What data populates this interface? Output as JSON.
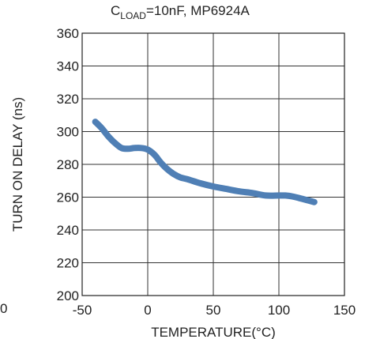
{
  "chart_data": {
    "type": "line",
    "title_parts": {
      "prefix": "C",
      "subscript": "LOAD",
      "suffix": "=10nF, MP6924A"
    },
    "xlabel": "TEMPERATURE(°C)",
    "ylabel": "TURN ON DELAY (ns)",
    "xlim": [
      -50,
      150
    ],
    "ylim": [
      200,
      360
    ],
    "x_ticks": [
      -50,
      0,
      50,
      100,
      150
    ],
    "y_ticks": [
      200,
      220,
      240,
      260,
      280,
      300,
      320,
      340,
      360
    ],
    "grid": true,
    "series": [
      {
        "color": "#4f7fb5",
        "x": [
          -40,
          -35,
          -30,
          -25,
          -20,
          -15,
          -10,
          -5,
          0,
          5,
          10,
          15,
          20,
          25,
          30,
          40,
          50,
          60,
          70,
          80,
          90,
          100,
          105,
          110,
          120,
          127
        ],
        "y": [
          306,
          302,
          297,
          293,
          290,
          289.5,
          290,
          290,
          289,
          286,
          281,
          277,
          274,
          272,
          271,
          268.5,
          266.5,
          265,
          263.5,
          262.5,
          261,
          261,
          261,
          260.5,
          258.5,
          257
        ]
      }
    ]
  },
  "page_edge_fragment": "0"
}
